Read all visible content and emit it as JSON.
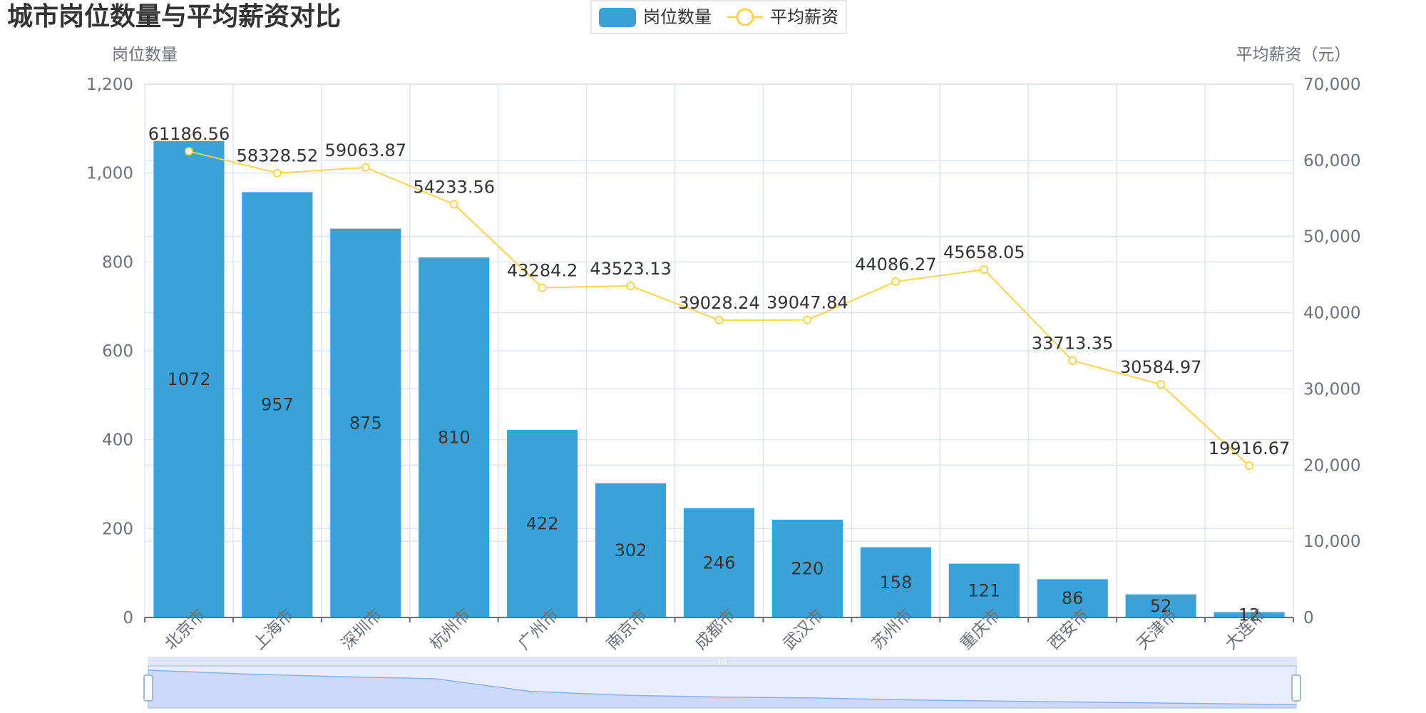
{
  "chart_data": {
    "type": "bar",
    "title": "城市岗位数量与平均薪资对比",
    "categories": [
      "北京市",
      "上海市",
      "深圳市",
      "杭州市",
      "广州市",
      "南京市",
      "成都市",
      "武汉市",
      "苏州市",
      "重庆市",
      "西安市",
      "天津市",
      "大连市"
    ],
    "series": [
      {
        "name": "岗位数量",
        "type": "bar",
        "axis": "left",
        "values": [
          1072,
          957,
          875,
          810,
          422,
          302,
          246,
          220,
          158,
          121,
          86,
          52,
          12
        ],
        "labels": [
          "1072",
          "957",
          "875",
          "810",
          "422",
          "302",
          "246",
          "220",
          "158",
          "121",
          "86",
          "52",
          "12"
        ]
      },
      {
        "name": "平均薪资",
        "type": "line",
        "axis": "right",
        "values": [
          61186.56,
          58328.52,
          59063.87,
          54233.56,
          43284.2,
          43523.13,
          39028.24,
          39047.84,
          44086.27,
          45658.05,
          33713.35,
          30584.97,
          19916.67
        ],
        "labels": [
          "61186.56",
          "58328.52",
          "59063.87",
          "54233.56",
          "43284.2",
          "43523.13",
          "39028.24",
          "39047.84",
          "44086.27",
          "45658.05",
          "33713.35",
          "30584.97",
          "19916.67"
        ]
      }
    ],
    "y_left": {
      "label": "岗位数量",
      "ylim": [
        0,
        1200
      ],
      "ticks": [
        0,
        200,
        400,
        600,
        800,
        1000,
        1200
      ],
      "tick_labels": [
        "0",
        "200",
        "400",
        "600",
        "800",
        "1,000",
        "1,200"
      ]
    },
    "y_right": {
      "label": "平均薪资（元）",
      "ylim": [
        0,
        70000
      ],
      "ticks": [
        0,
        10000,
        20000,
        30000,
        40000,
        50000,
        60000,
        70000
      ],
      "tick_labels": [
        "0",
        "10,000",
        "20,000",
        "30,000",
        "40,000",
        "50,000",
        "60,000",
        "70,000"
      ]
    },
    "grid": true,
    "legend_position": "top-center",
    "x_label_rotation_deg": 45,
    "datazoom": {
      "present": true,
      "start": 0,
      "end": 1
    },
    "colors": {
      "bar": "#3aa1d9",
      "line": "#f9d551",
      "grid": "#dfe4f3",
      "axis": "#6e7079",
      "zoom_fill": "#d7e1f9",
      "zoom_border": "#c4cde8"
    }
  }
}
